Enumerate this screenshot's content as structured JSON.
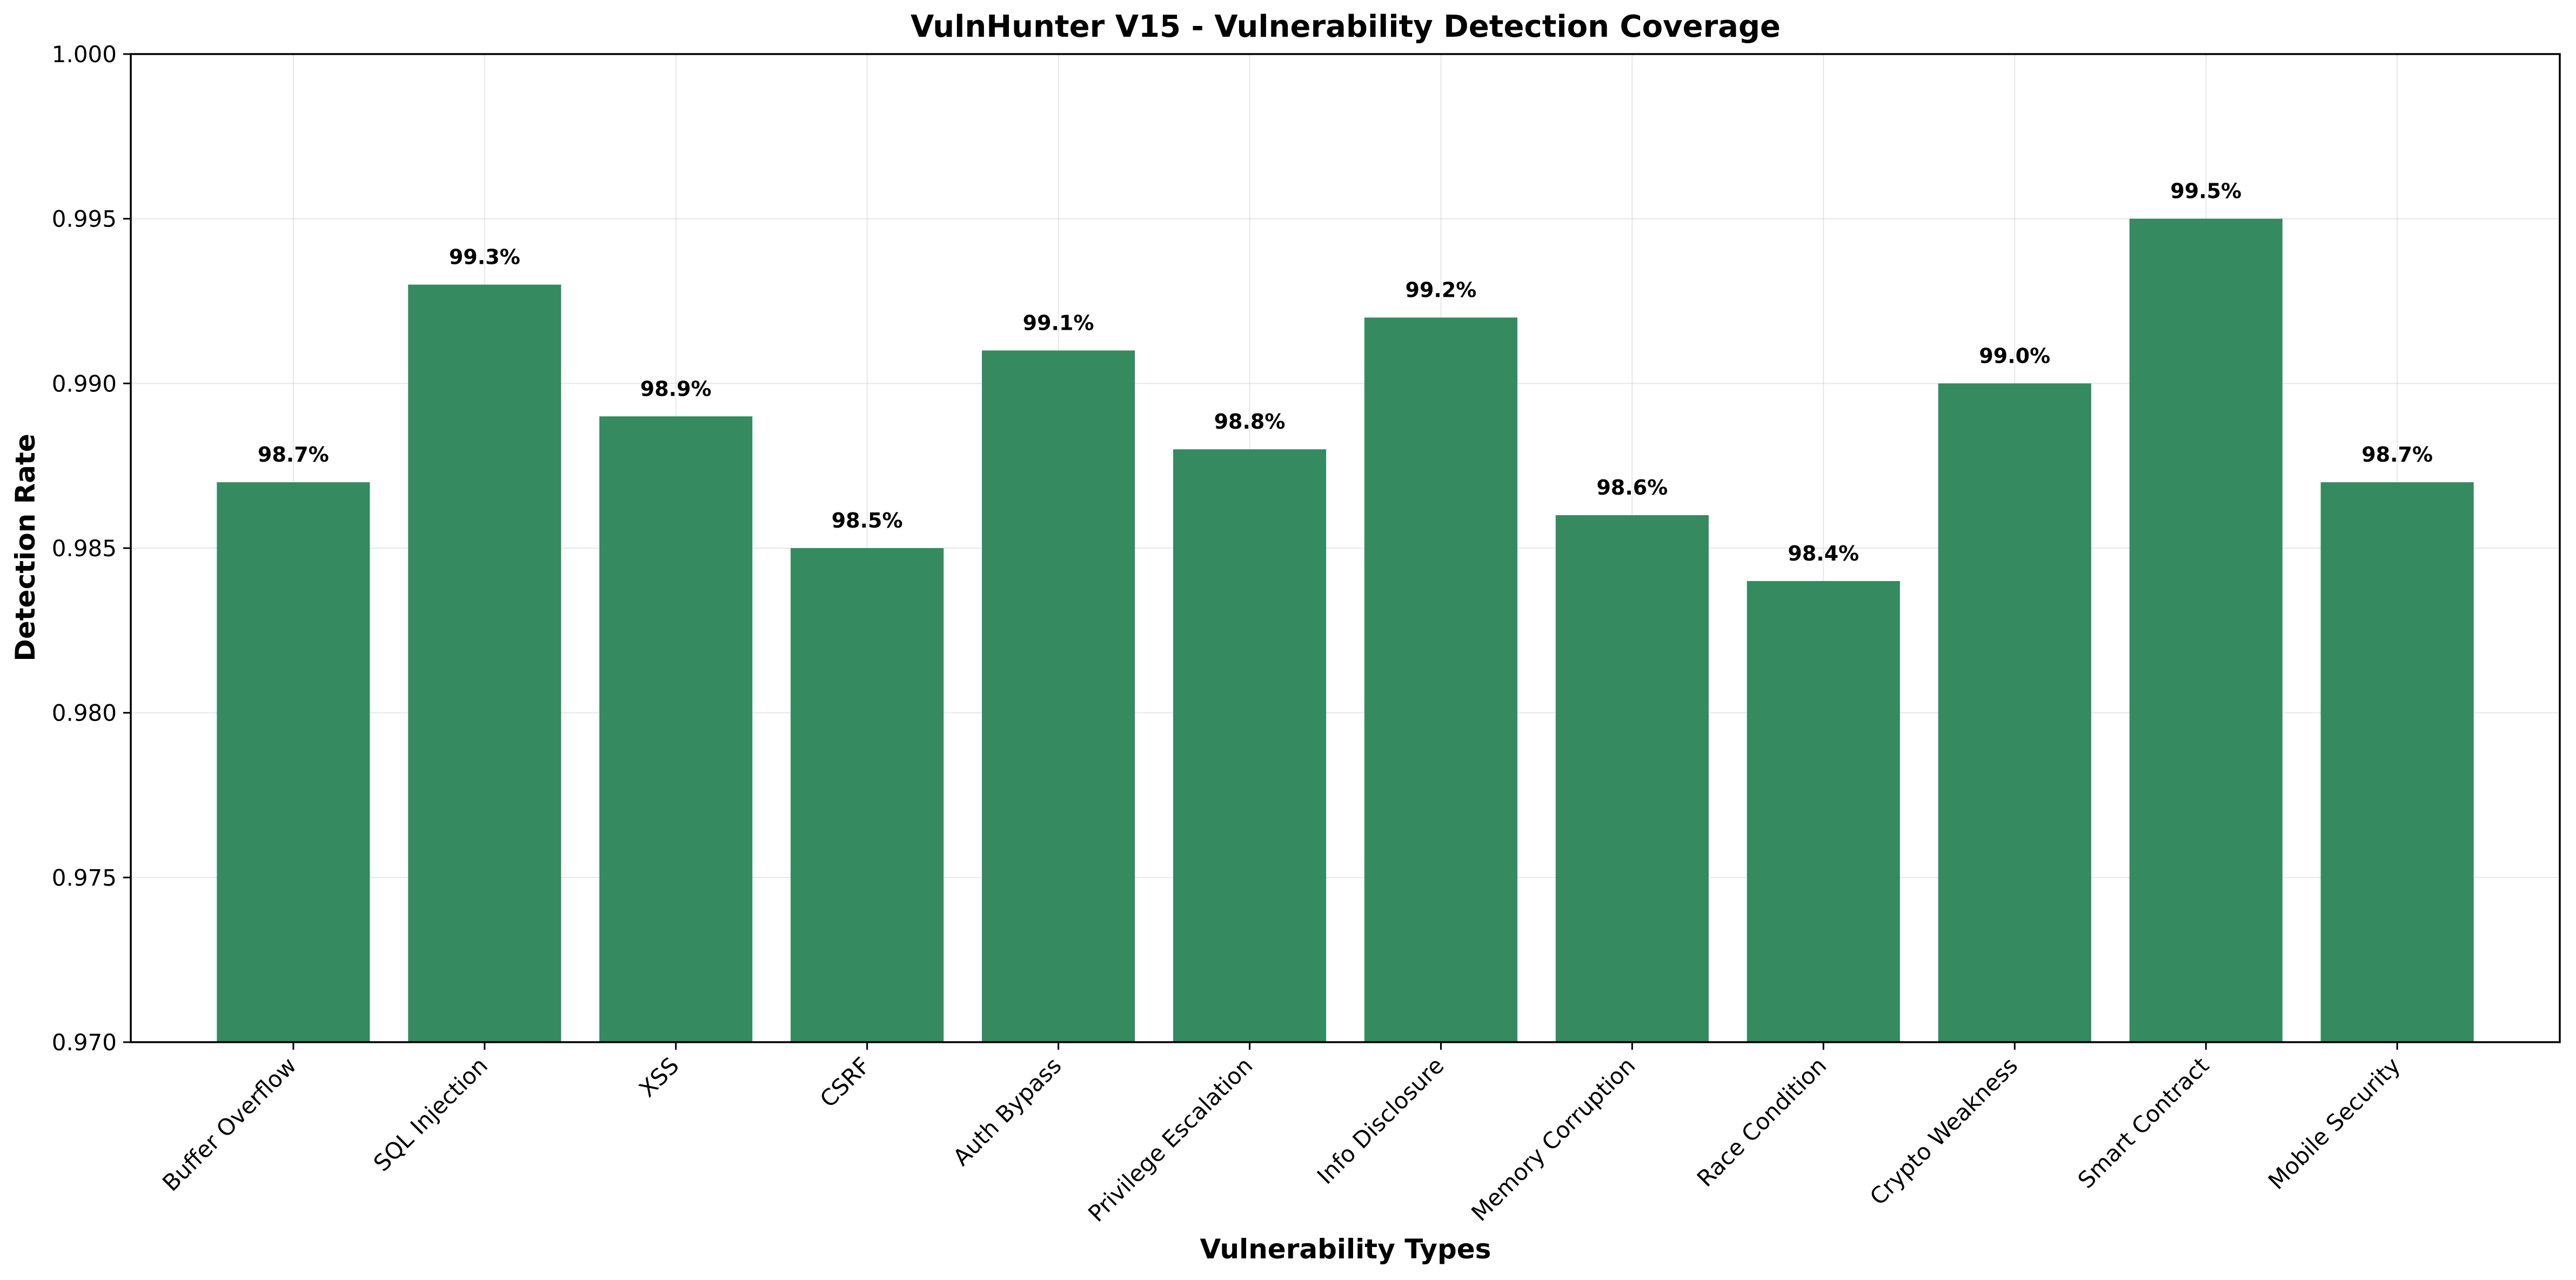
{
  "chart_data": {
    "type": "bar",
    "title": "VulnHunter V15 - Vulnerability Detection Coverage",
    "xlabel": "Vulnerability Types",
    "ylabel": "Detection Rate",
    "categories": [
      "Buffer Overflow",
      "SQL Injection",
      "XSS",
      "CSRF",
      "Auth Bypass",
      "Privilege Escalation",
      "Info Disclosure",
      "Memory Corruption",
      "Race Condition",
      "Crypto Weakness",
      "Smart Contract",
      "Mobile Security"
    ],
    "values": [
      0.987,
      0.993,
      0.989,
      0.985,
      0.991,
      0.988,
      0.992,
      0.986,
      0.984,
      0.99,
      0.995,
      0.987
    ],
    "value_labels": [
      "98.7%",
      "99.3%",
      "98.9%",
      "98.5%",
      "99.1%",
      "98.8%",
      "99.2%",
      "98.6%",
      "98.4%",
      "99.0%",
      "99.5%",
      "98.7%"
    ],
    "ylim": [
      0.97,
      1.0
    ],
    "yticks": [
      "0.970",
      "0.975",
      "0.980",
      "0.985",
      "0.990",
      "0.995",
      "1.000"
    ],
    "bar_color": "#358a60",
    "grid": true,
    "legend": "none"
  }
}
